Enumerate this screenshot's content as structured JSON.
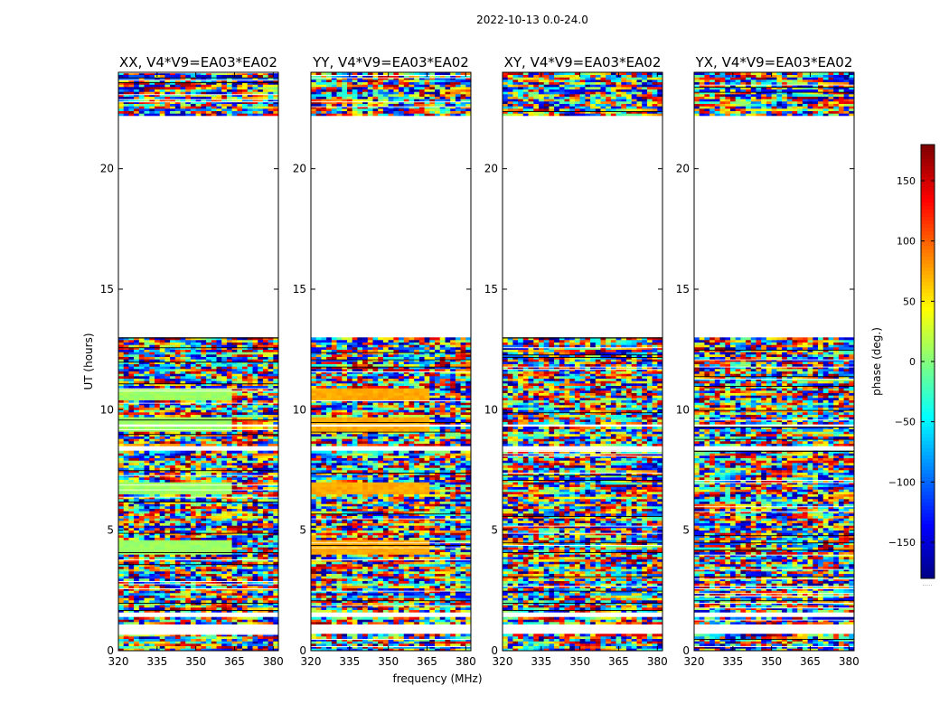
{
  "chart_data": {
    "type": "heatmap",
    "suptitle": "2022-10-13 0.0-24.0",
    "xlabel": "frequency (MHz)",
    "ylabel": "UT (hours)",
    "xlim": [
      320,
      382
    ],
    "ylim": [
      0,
      24
    ],
    "x_ticks": [
      "320",
      "335",
      "350",
      "365",
      "380"
    ],
    "x_tick_values": [
      320,
      335,
      350,
      365,
      380
    ],
    "y_ticks": [
      "0",
      "5",
      "10",
      "15",
      "20"
    ],
    "y_tick_values": [
      0,
      5,
      10,
      15,
      20
    ],
    "colorbar": {
      "label": "phase (deg.)",
      "range": [
        -180,
        180
      ],
      "ticks": [
        "150",
        "100",
        "50",
        "0",
        "−50",
        "−100",
        "−150"
      ],
      "tick_values": [
        150,
        100,
        50,
        0,
        -50,
        -100,
        -150
      ],
      "colormap": "jet",
      "footer": "....."
    },
    "no_data_gaps_hours": [
      [
        0.75,
        1.05
      ],
      [
        1.4,
        1.65
      ],
      [
        13.0,
        22.2
      ],
      [
        9.3,
        9.4
      ],
      [
        8.3,
        8.5
      ]
    ],
    "panels": [
      {
        "title": "XX, V4*V9=EA03*EA02",
        "coherent_phase_deg": 10,
        "coherent_bands_hours": [
          [
            4.0,
            4.6
          ],
          [
            6.4,
            6.9
          ],
          [
            9.0,
            9.6
          ],
          [
            10.3,
            10.8
          ]
        ],
        "coherent_to_mhz": 363
      },
      {
        "title": "YY, V4*V9=EA03*EA02",
        "coherent_phase_deg": 75,
        "coherent_bands_hours": [
          [
            4.0,
            4.6
          ],
          [
            6.4,
            6.9
          ],
          [
            9.0,
            9.6
          ],
          [
            10.3,
            10.8
          ]
        ],
        "coherent_to_mhz": 365
      },
      {
        "title": "XY, V4*V9=EA03*EA02",
        "coherent_phase_deg": null,
        "coherent_bands_hours": [],
        "coherent_to_mhz": null
      },
      {
        "title": "YX, V4*V9=EA03*EA02",
        "coherent_phase_deg": null,
        "coherent_bands_hours": [],
        "coherent_to_mhz": null
      }
    ]
  }
}
